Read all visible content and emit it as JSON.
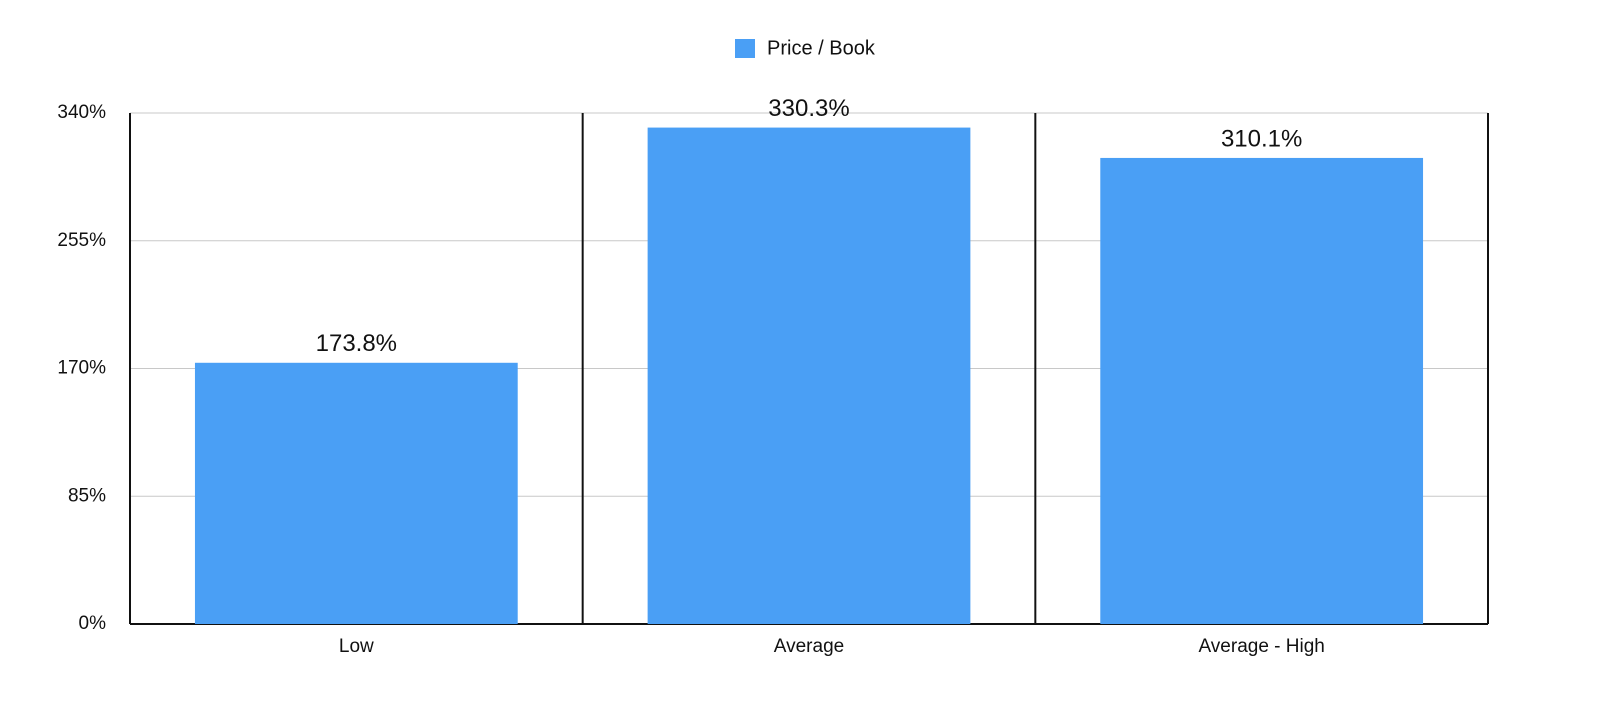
{
  "chart_data": {
    "type": "bar",
    "categories": [
      "Low",
      "Average",
      "Average - High"
    ],
    "series": [
      {
        "name": "Price / Book",
        "color": "#4a9ff5",
        "values": [
          173.8,
          330.3,
          310.1
        ],
        "value_labels": [
          "173.8%",
          "330.3%",
          "310.1%"
        ]
      }
    ],
    "ylim": [
      0,
      340
    ],
    "yticks": [
      {
        "value": 0,
        "label": "0%"
      },
      {
        "value": 85,
        "label": "85%"
      },
      {
        "value": 170,
        "label": "170%"
      },
      {
        "value": 255,
        "label": "255%"
      },
      {
        "value": 340,
        "label": "340%"
      }
    ],
    "grid": true,
    "legend": "top"
  }
}
